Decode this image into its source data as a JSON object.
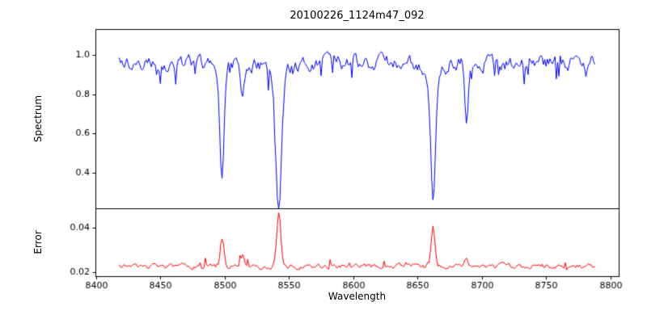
{
  "figure": {
    "title": "20100226_1124m47_092",
    "xlabel": "Wavelength",
    "background": "#ffffff",
    "axis_color": "#000000"
  },
  "axes": {
    "xlim": [
      8399.5,
      8806.5
    ],
    "xtick_values": [
      8400,
      8450,
      8500,
      8550,
      8600,
      8650,
      8700,
      8750,
      8800
    ],
    "xtick_labels": [
      "8400",
      "8450",
      "8500",
      "8550",
      "8600",
      "8650",
      "8700",
      "8750",
      "8800"
    ]
  },
  "chart_data": [
    {
      "type": "line",
      "name": "spectrum",
      "ylabel": "Spectrum",
      "color": "#0000ff",
      "x_start": 8418,
      "x_end": 8788,
      "x_step": 1,
      "ylim": [
        0.22,
        1.13
      ],
      "ytick_values": [
        0.4,
        0.6,
        0.8,
        1.0
      ],
      "ytick_labels": [
        "0.4",
        "0.6",
        "0.8",
        "1.0"
      ],
      "baseline": 0.96,
      "noise_amplitude": 0.06,
      "noise_spike_prob": 0.06,
      "noise_spike_depth": 0.1,
      "absorption_lines": [
        {
          "center": 8498.0,
          "depth": 0.54,
          "sigma": 1.6,
          "wing_depth": 0.05,
          "wing_sigma": 6
        },
        {
          "center": 8514.0,
          "depth": 0.18,
          "sigma": 1.4,
          "wing_depth": 0.0,
          "wing_sigma": 0
        },
        {
          "center": 8542.1,
          "depth": 0.68,
          "sigma": 2.2,
          "wing_depth": 0.06,
          "wing_sigma": 8
        },
        {
          "center": 8662.1,
          "depth": 0.65,
          "sigma": 1.9,
          "wing_depth": 0.05,
          "wing_sigma": 7
        },
        {
          "center": 8688.0,
          "depth": 0.3,
          "sigma": 1.4,
          "wing_depth": 0.0,
          "wing_sigma": 0
        }
      ],
      "seed": 20100226
    },
    {
      "type": "line",
      "name": "error",
      "ylabel": "Error",
      "color": "#ff0000",
      "x_start": 8418,
      "x_end": 8788,
      "x_step": 1,
      "ylim": [
        0.018,
        0.049
      ],
      "ytick_values": [
        0.02,
        0.04
      ],
      "ytick_labels": [
        "0.02",
        "0.04"
      ],
      "baseline": 0.0225,
      "noise_amplitude": 0.0018,
      "noise_spike_prob": 0.05,
      "noise_spike_depth": 0.004,
      "emission_peaks": [
        {
          "center": 8498.0,
          "height": 0.013,
          "sigma": 1.4
        },
        {
          "center": 8514.0,
          "height": 0.004,
          "sigma": 1.2
        },
        {
          "center": 8542.1,
          "height": 0.0245,
          "sigma": 1.6
        },
        {
          "center": 8662.1,
          "height": 0.018,
          "sigma": 1.4
        },
        {
          "center": 8688.0,
          "height": 0.0045,
          "sigma": 1.2
        }
      ],
      "seed": 1124
    }
  ]
}
